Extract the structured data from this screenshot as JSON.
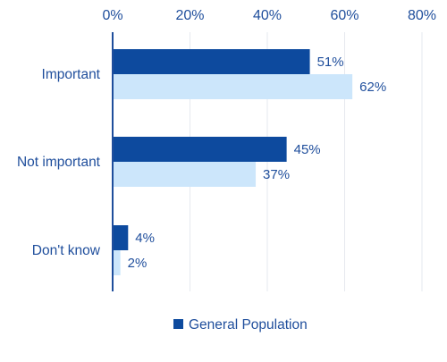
{
  "chart_data": {
    "type": "bar",
    "orientation": "horizontal",
    "categories": [
      "Important",
      "Not important",
      "Don't know"
    ],
    "series": [
      {
        "name": "General Population",
        "values": [
          51,
          45,
          4
        ],
        "labels": [
          "51%",
          "45%",
          "4%"
        ],
        "color": "#0d4a9e"
      },
      {
        "values": [
          62,
          37,
          2
        ],
        "labels": [
          "62%",
          "37%",
          "2%"
        ],
        "color": "#cce6fb"
      }
    ],
    "x_ticks": [
      "0%",
      "20%",
      "40%",
      "60%",
      "80%"
    ],
    "x_tick_values": [
      0,
      20,
      40,
      60,
      80
    ],
    "xlim": [
      0,
      80
    ],
    "xaxis_position": "top",
    "grid": "vertical",
    "legend_position": "bottom"
  },
  "colors": {
    "text": "#1f4e9c",
    "axis": "#1f4e9c",
    "grid": "#e6e9ef"
  }
}
